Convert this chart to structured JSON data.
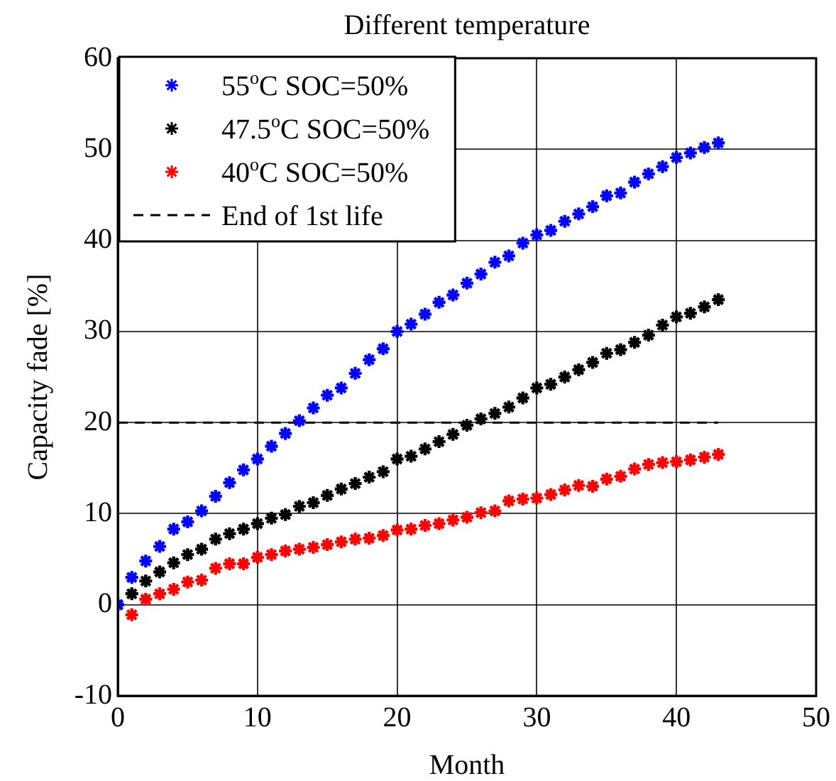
{
  "chart_data": {
    "type": "scatter",
    "title": "Different temperature",
    "xlabel": "Month",
    "ylabel": "Capacity fade [%]",
    "x": [
      0,
      1,
      2,
      3,
      4,
      5,
      6,
      7,
      8,
      9,
      10,
      11,
      12,
      13,
      14,
      15,
      16,
      17,
      18,
      19,
      20,
      21,
      22,
      23,
      24,
      25,
      26,
      27,
      28,
      29,
      30,
      31,
      32,
      33,
      34,
      35,
      36,
      37,
      38,
      39,
      40,
      41,
      42,
      43
    ],
    "series": [
      {
        "name": "55$^{o}$C SOC=50%",
        "color": "#0000ff",
        "values": [
          0,
          3.0,
          4.8,
          6.4,
          8.3,
          9.1,
          10.3,
          11.9,
          13.4,
          14.8,
          16.0,
          17.4,
          18.8,
          20.2,
          21.6,
          23.0,
          23.8,
          25.4,
          26.9,
          28.1,
          30.0,
          30.8,
          31.9,
          33.2,
          34.0,
          35.3,
          36.3,
          37.6,
          38.3,
          39.7,
          40.6,
          41.1,
          42.1,
          42.9,
          43.7,
          44.9,
          45.2,
          46.4,
          47.3,
          48.1,
          49.1,
          49.6,
          50.2,
          50.7
        ]
      },
      {
        "name": "47.5$^{o}$C SOC=50%",
        "color": "#000000",
        "values": [
          0,
          1.2,
          2.6,
          3.6,
          4.6,
          5.5,
          6.1,
          7.2,
          7.8,
          8.3,
          8.9,
          9.5,
          9.9,
          10.8,
          11.2,
          12.0,
          12.7,
          13.3,
          14.0,
          14.6,
          16.0,
          16.3,
          17.1,
          17.9,
          18.7,
          19.7,
          20.4,
          21.0,
          21.7,
          22.7,
          23.8,
          24.2,
          25.0,
          25.8,
          26.6,
          27.6,
          28.0,
          28.8,
          29.6,
          30.7,
          31.6,
          32.0,
          32.7,
          33.5
        ]
      },
      {
        "name": "40$^{o}$C SOC=50%",
        "color": "#ff0000",
        "values": [
          0,
          -1.1,
          0.6,
          1.2,
          1.7,
          2.5,
          2.7,
          4.0,
          4.5,
          4.5,
          5.2,
          5.5,
          5.9,
          6.1,
          6.3,
          6.6,
          6.9,
          7.2,
          7.3,
          7.6,
          8.2,
          8.3,
          8.7,
          8.9,
          9.3,
          9.6,
          10.1,
          10.3,
          11.4,
          11.6,
          11.7,
          12.1,
          12.6,
          13.1,
          13.0,
          13.8,
          14.1,
          14.9,
          15.4,
          15.6,
          15.7,
          15.9,
          16.2,
          16.5
        ]
      }
    ],
    "ref_lines": [
      {
        "axis": "y",
        "value": 20,
        "label": "End of 1st life",
        "color": "#000000",
        "line_style": "dashed"
      }
    ],
    "xlim": [
      0,
      50
    ],
    "xticks": [
      0,
      10,
      20,
      30,
      40,
      50
    ],
    "ylim": [
      -10,
      60
    ],
    "yticks": [
      -10,
      0,
      10,
      20,
      30,
      40,
      50,
      60
    ],
    "grid": true,
    "legend": "top left",
    "marker": "cross"
  }
}
